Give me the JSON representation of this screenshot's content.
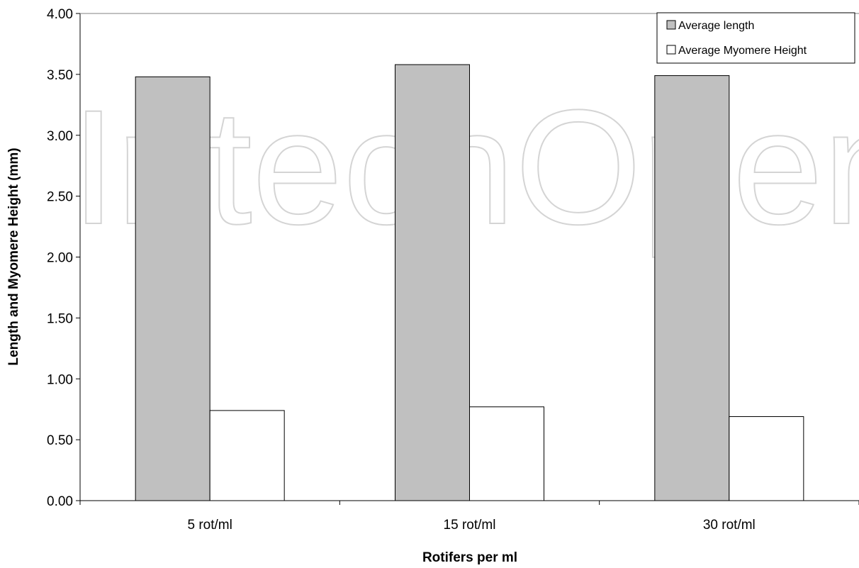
{
  "watermark_text": "IntechOpen",
  "chart_data": {
    "type": "bar",
    "categories": [
      "5 rot/ml",
      "15 rot/ml",
      "30 rot/ml"
    ],
    "series": [
      {
        "name": "Average length",
        "values": [
          3.48,
          3.58,
          3.49
        ],
        "color": "#c0c0c0"
      },
      {
        "name": "Average Myomere Height",
        "values": [
          0.74,
          0.77,
          0.69
        ],
        "color": "#ffffff"
      }
    ],
    "title": "",
    "xlabel": "Rotifers per ml",
    "ylabel": "Length and Myomere Height (mm)",
    "ylim": [
      0,
      4
    ],
    "yticks": [
      "0.00",
      "0.50",
      "1.00",
      "1.50",
      "2.00",
      "2.50",
      "3.00",
      "3.50",
      "4.00"
    ],
    "grid": false,
    "legend_position": "top-right"
  }
}
